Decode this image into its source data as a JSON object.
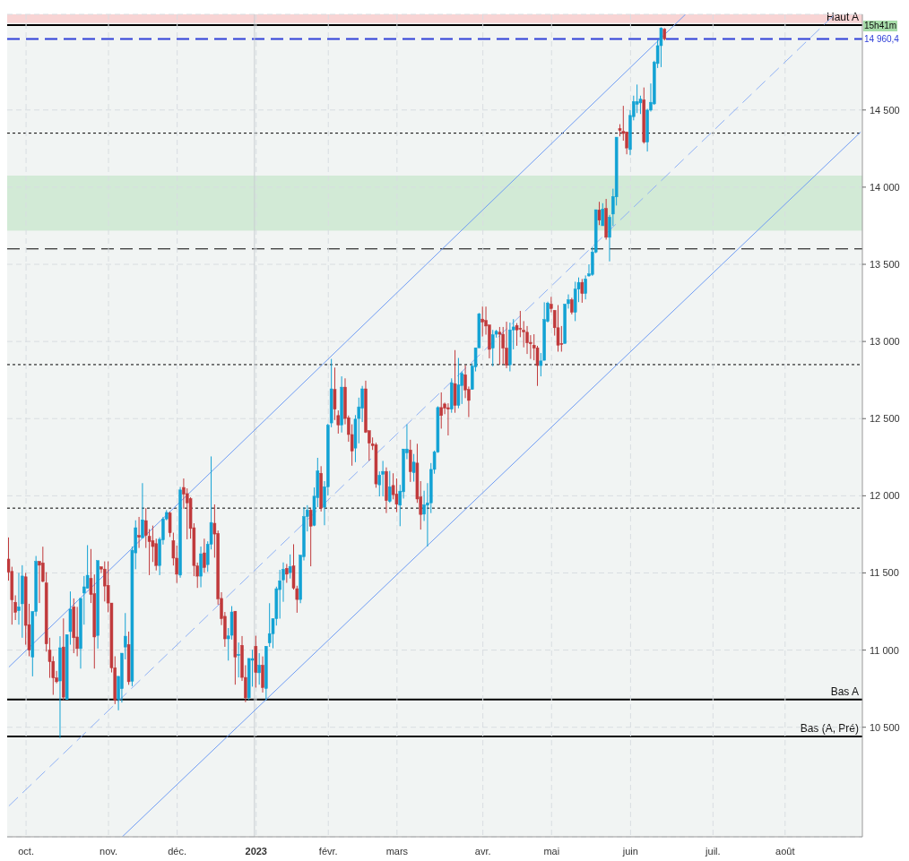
{
  "chart_data": {
    "type": "candlestick",
    "categories": [
      null,
      null,
      null,
      null,
      null,
      "oct.",
      null,
      null,
      null,
      null,
      null,
      null,
      null,
      null,
      null,
      null,
      null,
      null,
      null,
      null,
      null,
      null,
      null,
      null,
      null,
      null,
      null,
      null,
      null,
      "nov.",
      null,
      null,
      null,
      null,
      null,
      null,
      null,
      null,
      null,
      null,
      null,
      null,
      null,
      null,
      null,
      null,
      null,
      null,
      null,
      "déc.",
      null,
      null,
      null,
      null,
      null,
      null,
      null,
      null,
      null,
      null,
      null,
      null,
      null,
      null,
      null,
      null,
      null,
      null,
      null,
      null,
      null,
      null,
      "2023",
      null,
      null,
      null,
      null,
      null,
      null,
      null,
      null,
      null,
      null,
      null,
      null,
      null,
      null,
      null,
      null,
      null,
      null,
      null,
      null,
      "févr.",
      null,
      null,
      null,
      null,
      null,
      null,
      null,
      null,
      null,
      null,
      null,
      null,
      null,
      null,
      null,
      null,
      null,
      null,
      null,
      "mars",
      null,
      null,
      null,
      null,
      null,
      null,
      null,
      null,
      null,
      null,
      null,
      null,
      null,
      null,
      null,
      null,
      null,
      null,
      null,
      null,
      null,
      null,
      null,
      null,
      "avr.",
      null,
      null,
      null,
      null,
      null,
      null,
      null,
      null,
      null,
      null,
      null,
      null,
      null,
      null,
      null,
      null,
      null,
      null,
      null,
      "mai",
      null,
      null,
      null,
      null,
      null,
      null,
      null,
      null,
      null,
      null,
      null,
      null,
      null,
      null,
      null,
      null,
      null,
      null,
      null,
      null,
      null,
      null,
      "juin",
      null,
      null,
      null,
      null,
      null,
      null,
      null,
      null,
      null,
      null,
      null,
      null,
      null,
      null,
      null,
      null,
      null,
      null,
      null,
      null,
      null,
      null,
      null,
      "juil.",
      null,
      null,
      null,
      null,
      null,
      null,
      null,
      null,
      null,
      null,
      null,
      null,
      null,
      null,
      null,
      null,
      null,
      null,
      null,
      null,
      "août",
      null,
      null,
      null,
      null,
      null,
      null,
      null,
      null,
      null,
      null,
      null,
      null,
      null,
      null,
      null,
      null,
      null,
      null,
      null,
      null,
      null,
      null
    ],
    "ohlc": [
      [
        11590,
        11730,
        11450,
        11505
      ],
      [
        11510,
        11540,
        11165,
        11325
      ],
      [
        11310,
        11355,
        11195,
        11245
      ],
      [
        11255,
        11500,
        11165,
        11280
      ],
      [
        11300,
        11550,
        11080,
        11480
      ],
      [
        11475,
        11500,
        11035,
        11160
      ],
      [
        11165,
        11300,
        10960,
        11000
      ],
      [
        10955,
        11250,
        10830,
        11250
      ],
      [
        11250,
        11610,
        11220,
        11575
      ],
      [
        11575,
        11575,
        11305,
        11550
      ],
      [
        11565,
        11670,
        11440,
        11445
      ],
      [
        11435,
        11505,
        10990,
        11040
      ],
      [
        11000,
        11080,
        10820,
        10925
      ],
      [
        10927,
        10960,
        10710,
        10820
      ],
      [
        10820,
        10865,
        10785,
        10795
      ],
      [
        10800,
        11090,
        10430,
        11015
      ],
      [
        11020,
        11205,
        10675,
        10695
      ],
      [
        10680,
        11100,
        10680,
        11100
      ],
      [
        11120,
        11380,
        11035,
        11265
      ],
      [
        11280,
        11335,
        10980,
        11080
      ],
      [
        11085,
        11280,
        10960,
        11010
      ],
      [
        11010,
        11335,
        10880,
        11335
      ],
      [
        11370,
        11480,
        11165,
        11410
      ],
      [
        11400,
        11680,
        11400,
        11485
      ],
      [
        11465,
        11655,
        11305,
        11360
      ],
      [
        11365,
        11490,
        10880,
        11085
      ],
      [
        11095,
        11580,
        11010,
        11580
      ],
      [
        11540,
        11540,
        11500,
        11525
      ],
      [
        11525,
        11575,
        11315,
        11415
      ],
      [
        11420,
        11575,
        11245,
        11305
      ],
      [
        11305,
        11305,
        10855,
        10885
      ],
      [
        10885,
        10960,
        10650,
        10675
      ],
      [
        10680,
        10830,
        10610,
        10830
      ],
      [
        10750,
        10980,
        10660,
        10980
      ],
      [
        11020,
        11240,
        10940,
        11090
      ],
      [
        11036,
        11120,
        10775,
        10795
      ],
      [
        10798,
        11671,
        10766,
        11647
      ],
      [
        11630,
        11841,
        11524,
        11793
      ],
      [
        11743,
        11863,
        11662,
        11731
      ],
      [
        11728,
        12082,
        11728,
        11844
      ],
      [
        11839,
        11920,
        11662,
        11743
      ],
      [
        11737,
        11784,
        11486,
        11703
      ],
      [
        11709,
        11807,
        11571,
        11671
      ],
      [
        11690,
        11722,
        11516,
        11548
      ],
      [
        11548,
        11731,
        11486,
        11718
      ],
      [
        11714,
        11863,
        11684,
        11850
      ],
      [
        11850,
        11907,
        11841,
        11892
      ],
      [
        11888,
        11897,
        11733,
        11760
      ],
      [
        11709,
        11761,
        11548,
        11596
      ],
      [
        11596,
        11677,
        11435,
        11492
      ],
      [
        11486,
        12057,
        11469,
        12038
      ],
      [
        12054,
        12112,
        11916,
        12010
      ],
      [
        12014,
        12048,
        11718,
        11954
      ],
      [
        11982,
        11991,
        11722,
        11788
      ],
      [
        11793,
        11822,
        11479,
        11548
      ],
      [
        11545,
        11567,
        11403,
        11479
      ],
      [
        11479,
        11671,
        11407,
        11624
      ],
      [
        11630,
        11722,
        11501,
        11535
      ],
      [
        11554,
        11705,
        11507,
        11686
      ],
      [
        11686,
        12255,
        11652,
        11827
      ],
      [
        11822,
        11944,
        11599,
        11752
      ],
      [
        11756,
        11775,
        11294,
        11332
      ],
      [
        11335,
        11375,
        11162,
        11204
      ],
      [
        11219,
        11247,
        11021,
        11073
      ],
      [
        11073,
        11143,
        10932,
        11092
      ],
      [
        11096,
        11285,
        11068,
        11247
      ],
      [
        11252,
        11252,
        10776,
        10955
      ],
      [
        10965,
        11049,
        10823,
        10972
      ],
      [
        11031,
        11091,
        10800,
        10823
      ],
      [
        10823,
        10902,
        10663,
        10691
      ],
      [
        10691,
        10946,
        10676,
        10946
      ],
      [
        10934,
        11002,
        10763,
        10945
      ],
      [
        11025,
        11093,
        10757,
        10855
      ],
      [
        10853,
        10980,
        10776,
        10902
      ],
      [
        10902,
        10959,
        10725,
        10757
      ],
      [
        10751,
        11025,
        10676,
        11025
      ],
      [
        11046,
        11304,
        11021,
        11107
      ],
      [
        11106,
        11204,
        11012,
        11204
      ],
      [
        11204,
        11411,
        11159,
        11398
      ],
      [
        11392,
        11520,
        11204,
        11449
      ],
      [
        11455,
        11568,
        11313,
        11524
      ],
      [
        11530,
        11558,
        11436,
        11492
      ],
      [
        11502,
        11620,
        11464,
        11542
      ],
      [
        11545,
        11686,
        11392,
        11402
      ],
      [
        11398,
        11417,
        11242,
        11328
      ],
      [
        11328,
        11615,
        11304,
        11615
      ],
      [
        11605,
        11926,
        11581,
        11865
      ],
      [
        11865,
        11939,
        11769,
        11907
      ],
      [
        11907,
        11916,
        11543,
        11803
      ],
      [
        11809,
        12054,
        11803,
        11997
      ],
      [
        11988,
        12246,
        11926,
        12161
      ],
      [
        12146,
        12192,
        11898,
        11920
      ],
      [
        11926,
        12095,
        11809,
        12058
      ],
      [
        12058,
        12467,
        12001,
        12457
      ],
      [
        12472,
        12887,
        12444,
        12693
      ],
      [
        12689,
        12831,
        12491,
        12561
      ],
      [
        12520,
        12553,
        12403,
        12459
      ],
      [
        12459,
        12774,
        12410,
        12704
      ],
      [
        12704,
        12761,
        12463,
        12501
      ],
      [
        12506,
        12520,
        12350,
        12397
      ],
      [
        12397,
        12463,
        12195,
        12290
      ],
      [
        12309,
        12523,
        12218,
        12497
      ],
      [
        12501,
        12636,
        12340,
        12576
      ],
      [
        12567,
        12712,
        12478,
        12693
      ],
      [
        12693,
        12746,
        12407,
        12412
      ],
      [
        12422,
        12422,
        12227,
        12341
      ],
      [
        12337,
        12378,
        12297,
        12325
      ],
      [
        12331,
        12344,
        12052,
        12077
      ],
      [
        12071,
        12158,
        11996,
        12133
      ],
      [
        12139,
        12226,
        11996,
        12158
      ],
      [
        12158,
        12184,
        11888,
        11969
      ],
      [
        11963,
        12161,
        11954,
        12058
      ],
      [
        12067,
        12146,
        11977,
        12007
      ],
      [
        12011,
        12112,
        11894,
        11945
      ],
      [
        11939,
        12071,
        11803,
        12030
      ],
      [
        12026,
        12303,
        11982,
        12303
      ],
      [
        12278,
        12463,
        12237,
        12303
      ],
      [
        12297,
        12363,
        12090,
        12156
      ],
      [
        12150,
        12271,
        12092,
        12218
      ],
      [
        12212,
        12337,
        11954,
        11979
      ],
      [
        11992,
        12095,
        11781,
        11879
      ],
      [
        11881,
        12033,
        11837,
        11941
      ],
      [
        11939,
        12082,
        11671,
        11954
      ],
      [
        11954,
        12212,
        11888,
        12171
      ],
      [
        12171,
        12293,
        12143,
        12284
      ],
      [
        12284,
        12580,
        12278,
        12572
      ],
      [
        12572,
        12670,
        12435,
        12520
      ],
      [
        12595,
        12604,
        12529,
        12567
      ],
      [
        12571,
        12599,
        12391,
        12561
      ],
      [
        12561,
        12761,
        12538,
        12733
      ],
      [
        12727,
        12944,
        12538,
        12586
      ],
      [
        12586,
        12893,
        12567,
        12718
      ],
      [
        12714,
        12806,
        12595,
        12793
      ],
      [
        12784,
        12846,
        12633,
        12686
      ],
      [
        12689,
        12708,
        12510,
        12618
      ],
      [
        12689,
        12859,
        12689,
        12840
      ],
      [
        12836,
        12959,
        12806,
        12959
      ],
      [
        12959,
        13185,
        12959,
        13179
      ],
      [
        13145,
        13226,
        13032,
        13126
      ],
      [
        13136,
        13226,
        13044,
        13100
      ],
      [
        13107,
        13107,
        12891,
        12949
      ],
      [
        12957,
        13075,
        12840,
        13043
      ],
      [
        13047,
        13075,
        13025,
        13066
      ],
      [
        13060,
        13094,
        12849,
        13047
      ],
      [
        13047,
        13094,
        12855,
        12957
      ],
      [
        12957,
        13128,
        12827,
        12846
      ],
      [
        12849,
        13122,
        12806,
        13075
      ],
      [
        13075,
        13145,
        12949,
        13094
      ],
      [
        13104,
        13119,
        12972,
        13075
      ],
      [
        13085,
        13198,
        13028,
        13081
      ],
      [
        13072,
        13132,
        12962,
        13062
      ],
      [
        13060,
        13100,
        12919,
        12991
      ],
      [
        12994,
        13041,
        12887,
        12985
      ],
      [
        12976,
        13047,
        12878,
        12957
      ],
      [
        12959,
        12972,
        12712,
        12844
      ],
      [
        12844,
        12925,
        12774,
        12874
      ],
      [
        12878,
        13254,
        12878,
        13142
      ],
      [
        13130,
        13258,
        13123,
        13249
      ],
      [
        13241,
        13289,
        13189,
        13213
      ],
      [
        13202,
        13202,
        13038,
        13089
      ],
      [
        13089,
        13236,
        12934,
        12976
      ],
      [
        12987,
        13100,
        12934,
        12981
      ],
      [
        12987,
        13245,
        12987,
        13241
      ],
      [
        13245,
        13305,
        13213,
        13270
      ],
      [
        13270,
        13283,
        13175,
        13189
      ],
      [
        13189,
        13387,
        13132,
        13339
      ],
      [
        13339,
        13415,
        13255,
        13383
      ],
      [
        13383,
        13405,
        13251,
        13311
      ],
      [
        13311,
        13428,
        13273,
        13405
      ],
      [
        13425,
        13500,
        13420,
        13438
      ],
      [
        13434,
        13613,
        13425,
        13579
      ],
      [
        13579,
        13854,
        13572,
        13854
      ],
      [
        13852,
        13905,
        13754,
        13786
      ],
      [
        13750,
        13896,
        13750,
        13858
      ],
      [
        13862,
        13924,
        13660,
        13675
      ],
      [
        13675,
        13820,
        13519,
        13805
      ],
      [
        13826,
        13990,
        13749,
        13939
      ],
      [
        13937,
        14324,
        13881,
        14324
      ],
      [
        14380,
        14408,
        14329,
        14367
      ],
      [
        14361,
        14527,
        14301,
        14348
      ],
      [
        14358,
        14358,
        14213,
        14254
      ],
      [
        14244,
        14499,
        14207,
        14465
      ],
      [
        14457,
        14593,
        14433,
        14555
      ],
      [
        14537,
        14665,
        14480,
        14555
      ],
      [
        14546,
        14593,
        14474,
        14570
      ],
      [
        14565,
        14646,
        14282,
        14292
      ],
      [
        14292,
        14508,
        14231,
        14499
      ],
      [
        14499,
        14672,
        14490,
        14550
      ],
      [
        14540,
        14819,
        14533,
        14810
      ],
      [
        14801,
        14955,
        14772,
        14917
      ],
      [
        14917,
        15036,
        14778,
        15031
      ],
      [
        15023,
        15031,
        14951,
        14961
      ],
      null,
      null,
      null,
      null,
      null,
      null,
      null,
      null,
      null,
      null,
      null,
      null,
      null,
      null,
      null,
      null,
      null,
      null,
      null,
      null,
      null,
      null,
      null,
      null,
      null,
      null,
      null,
      null,
      null,
      null,
      null,
      null,
      null,
      null,
      null,
      null,
      null,
      null,
      null,
      null,
      null,
      null,
      null,
      null,
      null,
      null,
      null,
      null,
      null,
      null,
      null,
      null,
      null,
      null,
      null,
      null,
      null
    ],
    "colors": [
      "#c0393b",
      "#c0393b",
      "#c0393b",
      "#12a2d4",
      "#12a2d4",
      "#c0393b",
      "#c0393b",
      "#12a2d4",
      "#12a2d4",
      "#c0393b",
      "#c0393b",
      "#c0393b",
      "#c0393b",
      "#c0393b",
      "#c0393b",
      "#12a2d4",
      "#c0393b",
      "#12a2d4",
      "#12a2d4",
      "#c0393b",
      "#c0393b",
      "#12a2d4",
      "#12a2d4",
      "#12a2d4",
      "#c0393b",
      "#c0393b",
      "#12a2d4",
      "#c0393b",
      "#c0393b",
      "#c0393b",
      "#c0393b",
      "#c0393b",
      "#12a2d4",
      "#12a2d4",
      "#12a2d4",
      "#c0393b",
      "#12a2d4",
      "#12a2d4",
      "#c0393b",
      "#12a2d4",
      "#c0393b",
      "#c0393b",
      "#c0393b",
      "#c0393b",
      "#12a2d4",
      "#12a2d4",
      "#12a2d4",
      "#c0393b",
      "#c0393b",
      "#c0393b",
      "#12a2d4",
      "#c0393b",
      "#c0393b",
      "#c0393b",
      "#c0393b",
      "#c0393b",
      "#12a2d4",
      "#c0393b",
      "#12a2d4",
      "#12a2d4",
      "#c0393b",
      "#c0393b",
      "#c0393b",
      "#c0393b",
      "#12a2d4",
      "#12a2d4",
      "#c0393b",
      "#12a2d4",
      "#c0393b",
      "#c0393b",
      "#12a2d4",
      "#12a2d4",
      "#c0393b",
      "#12a2d4",
      "#c0393b",
      "#12a2d4",
      "#12a2d4",
      "#12a2d4",
      "#12a2d4",
      "#12a2d4",
      "#12a2d4",
      "#c0393b",
      "#12a2d4",
      "#c0393b",
      "#c0393b",
      "#12a2d4",
      "#12a2d4",
      "#12a2d4",
      "#c0393b",
      "#12a2d4",
      "#12a2d4",
      "#c0393b",
      "#12a2d4",
      "#12a2d4",
      "#12a2d4",
      "#c0393b",
      "#c0393b",
      "#12a2d4",
      "#c0393b",
      "#c0393b",
      "#c0393b",
      "#12a2d4",
      "#12a2d4",
      "#12a2d4",
      "#c0393b",
      "#c0393b",
      "#c0393b",
      "#c0393b",
      "#12a2d4",
      "#12a2d4",
      "#c0393b",
      "#12a2d4",
      "#c0393b",
      "#c0393b",
      "#12a2d4",
      "#12a2d4",
      "#12a2d4",
      "#c0393b",
      "#12a2d4",
      "#c0393b",
      "#c0393b",
      "#12a2d4",
      "#12a2d4",
      "#12a2d4",
      "#12a2d4",
      "#12a2d4",
      "#c0393b",
      "#c0393b",
      "#c0393b",
      "#12a2d4",
      "#c0393b",
      "#12a2d4",
      "#12a2d4",
      "#c0393b",
      "#c0393b",
      "#12a2d4",
      "#12a2d4",
      "#12a2d4",
      "#c0393b",
      "#c0393b",
      "#c0393b",
      "#12a2d4",
      "#12a2d4",
      "#c0393b",
      "#c0393b",
      "#c0393b",
      "#12a2d4",
      "#12a2d4",
      "#c0393b",
      "#c0393b",
      "#c0393b",
      "#c0393b",
      "#c0393b",
      "#c0393b",
      "#c0393b",
      "#12a2d4",
      "#12a2d4",
      "#12a2d4",
      "#c0393b",
      "#c0393b",
      "#c0393b",
      "#c0393b",
      "#12a2d4",
      "#12a2d4",
      "#c0393b",
      "#12a2d4",
      "#12a2d4",
      "#c0393b",
      "#12a2d4",
      "#12a2d4",
      "#12a2d4",
      "#12a2d4",
      "#c0393b",
      "#12a2d4",
      "#c0393b",
      "#12a2d4",
      "#12a2d4",
      "#12a2d4",
      "#c0393b",
      "#c0393b",
      "#c0393b",
      "#12a2d4",
      "#12a2d4",
      "#12a2d4",
      "#12a2d4",
      "#c0393b",
      "#12a2d4",
      "#12a2d4",
      "#12a2d4",
      "#12a2d4",
      "#12a2d4",
      "#c0393b",
      null,
      null,
      null,
      null,
      null,
      null,
      null,
      null,
      null,
      null,
      null,
      null,
      null,
      null,
      null,
      null,
      null,
      null,
      null,
      null,
      null,
      null,
      null,
      null,
      null,
      null,
      null,
      null,
      null,
      null,
      null,
      null,
      null,
      null,
      null,
      null,
      null,
      null,
      null,
      null,
      null,
      null,
      null,
      null,
      null,
      null,
      null,
      null,
      null,
      null,
      null,
      null,
      null,
      null,
      null,
      null,
      null
    ],
    "series": [
      {
        "type": "line",
        "color": "#6f9cf3",
        "line_style": "solid",
        "values": [
          10890,
          null,
          null,
          null,
          null,
          null,
          null,
          null,
          null,
          null,
          null,
          null,
          null,
          null,
          null,
          null,
          null,
          null,
          null,
          null,
          null,
          null,
          null,
          null,
          null,
          null,
          null,
          null,
          null,
          null,
          null,
          null,
          null,
          null,
          null,
          null,
          null,
          null,
          null,
          null,
          null,
          null,
          null,
          null,
          null,
          null,
          null,
          null,
          null,
          null,
          null,
          null,
          null,
          null,
          null,
          null,
          null,
          null,
          null,
          null,
          null,
          null,
          null,
          null,
          null,
          null,
          null,
          null,
          null,
          null,
          null,
          null,
          null,
          null,
          null,
          null,
          null,
          null,
          null,
          null,
          null,
          null,
          null,
          null,
          null,
          null,
          null,
          null,
          null,
          null,
          null,
          null,
          null,
          null,
          null,
          null,
          null,
          null,
          null,
          null,
          null,
          null,
          null,
          null,
          null,
          null,
          null,
          null,
          null,
          null,
          null,
          null,
          null,
          null,
          null,
          null,
          null,
          null,
          null,
          null,
          null,
          null,
          null,
          null,
          null,
          null,
          null,
          null,
          null,
          null,
          null,
          null,
          null,
          null,
          null,
          null,
          null,
          null,
          null,
          null,
          null,
          null,
          null,
          null,
          null,
          null,
          null,
          null,
          null,
          null,
          null,
          null,
          null,
          null,
          null,
          null,
          null,
          null,
          null,
          null,
          null,
          null,
          null,
          null,
          null,
          null,
          null,
          null,
          null,
          null,
          null,
          null,
          null,
          null,
          null,
          null,
          null,
          null,
          null,
          null,
          null,
          null,
          null,
          null,
          null,
          null,
          null,
          null,
          null,
          null,
          null,
          null,
          null,
          null,
          null,
          null,
          null,
          15120,
          null,
          null,
          null,
          null,
          null,
          null,
          null,
          null,
          null,
          null,
          null,
          null,
          null,
          null,
          null,
          null,
          null,
          null,
          null,
          null,
          null,
          null,
          null,
          null,
          null,
          null,
          null,
          null,
          null,
          null,
          null,
          null,
          null,
          null,
          null,
          null,
          null,
          null,
          null,
          null,
          null,
          null,
          null,
          null,
          null,
          null,
          null,
          null,
          null,
          null,
          null
        ]
      },
      {
        "type": "line",
        "color": "#8fb1f5",
        "line_style": "dashed",
        "values": [
          9990,
          null,
          null,
          null,
          null,
          null,
          null,
          null,
          null,
          null,
          null,
          null,
          null,
          null,
          null,
          null,
          null,
          null,
          null,
          null,
          null,
          null,
          null,
          null,
          null,
          null,
          null,
          null,
          null,
          null,
          null,
          null,
          null,
          null,
          null,
          null,
          null,
          null,
          null,
          null,
          null,
          null,
          null,
          null,
          null,
          null,
          null,
          null,
          null,
          null,
          null,
          null,
          null,
          null,
          null,
          null,
          null,
          null,
          null,
          null,
          null,
          null,
          null,
          null,
          null,
          null,
          null,
          null,
          null,
          null,
          null,
          null,
          null,
          null,
          null,
          null,
          null,
          null,
          null,
          null,
          null,
          null,
          null,
          null,
          null,
          null,
          null,
          null,
          null,
          null,
          null,
          null,
          null,
          null,
          null,
          null,
          null,
          null,
          null,
          null,
          null,
          null,
          null,
          null,
          null,
          null,
          null,
          null,
          null,
          null,
          null,
          null,
          null,
          null,
          null,
          null,
          null,
          null,
          null,
          null,
          null,
          null,
          null,
          null,
          null,
          null,
          null,
          null,
          null,
          null,
          null,
          null,
          null,
          null,
          null,
          null,
          null,
          null,
          null,
          null,
          null,
          null,
          null,
          null,
          null,
          null,
          null,
          null,
          null,
          null,
          null,
          null,
          null,
          null,
          null,
          null,
          null,
          null,
          null,
          null,
          null,
          null,
          null,
          null,
          null,
          null,
          null,
          null,
          null,
          null,
          null,
          null,
          null,
          null,
          null,
          null,
          null,
          null,
          null,
          null,
          null,
          null,
          null,
          null,
          null,
          null,
          null,
          null,
          null,
          null,
          null,
          null,
          null,
          null,
          null,
          null,
          null,
          null,
          null,
          null,
          null,
          null,
          null,
          null,
          null,
          null,
          null,
          null,
          null,
          null,
          null,
          null,
          null,
          null,
          null,
          null,
          null,
          null,
          null,
          null,
          null,
          null,
          null,
          null,
          null,
          null,
          null,
          null,
          null,
          null,
          null,
          null,
          null,
          null,
          null,
          null,
          null,
          null,
          null,
          null,
          15110,
          null,
          null,
          null,
          null,
          null,
          null,
          null,
          null
        ]
      },
      {
        "type": "line",
        "color": "#6f9cf3",
        "line_style": "solid",
        "values": [
          null,
          null,
          null,
          null,
          null,
          null,
          null,
          null,
          null,
          null,
          null,
          null,
          null,
          null,
          null,
          null,
          null,
          null,
          null,
          null,
          null,
          null,
          null,
          null,
          null,
          null,
          null,
          null,
          null,
          null,
          null,
          null,
          null,
          9790,
          null,
          null,
          null,
          null,
          null,
          null,
          null,
          null,
          null,
          null,
          null,
          null,
          null,
          null,
          null,
          null,
          null,
          null,
          null,
          null,
          null,
          null,
          null,
          null,
          null,
          null,
          null,
          null,
          null,
          null,
          null,
          null,
          null,
          null,
          null,
          null,
          null,
          null,
          null,
          null,
          null,
          null,
          null,
          null,
          null,
          null,
          null,
          null,
          null,
          null,
          null,
          null,
          null,
          null,
          null,
          null,
          null,
          null,
          null,
          null,
          null,
          null,
          null,
          null,
          null,
          null,
          null,
          null,
          null,
          null,
          null,
          null,
          null,
          null,
          null,
          null,
          null,
          null,
          null,
          null,
          null,
          null,
          null,
          null,
          null,
          null,
          null,
          null,
          null,
          null,
          null,
          null,
          null,
          null,
          null,
          null,
          null,
          null,
          null,
          null,
          null,
          null,
          null,
          null,
          null,
          null,
          null,
          null,
          null,
          null,
          null,
          null,
          null,
          null,
          null,
          null,
          null,
          null,
          null,
          null,
          null,
          null,
          null,
          null,
          null,
          null,
          null,
          null,
          null,
          null,
          null,
          null,
          null,
          null,
          null,
          null,
          null,
          null,
          null,
          null,
          null,
          null,
          null,
          null,
          null,
          null,
          null,
          null,
          null,
          null,
          null,
          null,
          null,
          null,
          null,
          null,
          null,
          null,
          null,
          null,
          null,
          null,
          null,
          null,
          null,
          null,
          null,
          null,
          null,
          null,
          null,
          null,
          null,
          null,
          null,
          null,
          null,
          null,
          null,
          null,
          null,
          null,
          null,
          null,
          null,
          null,
          null,
          null,
          null,
          null,
          null,
          null,
          null,
          null,
          null,
          null,
          null,
          null,
          null,
          null,
          null,
          null,
          null,
          null,
          null,
          null,
          null,
          null,
          null,
          null,
          null,
          null,
          null,
          null,
          14357
        ]
      }
    ],
    "ylim": [
      9790,
      15120
    ],
    "yticks": [
      {
        "value": 10500,
        "label": "10 500"
      },
      {
        "value": 11000,
        "label": "11 000"
      },
      {
        "value": 11500,
        "label": "11 500"
      },
      {
        "value": 12000,
        "label": "12 000"
      },
      {
        "value": 12500,
        "label": "12 500"
      },
      {
        "value": 13000,
        "label": "13 000"
      },
      {
        "value": 13500,
        "label": "13 500"
      },
      {
        "value": 14000,
        "label": "14 000"
      },
      {
        "value": 14500,
        "label": "14 500"
      }
    ],
    "grid": true,
    "ref_lines": [
      {
        "axis": "y",
        "value": 15050,
        "label": "Haut A",
        "color": "#000000",
        "line_style": "solid"
      },
      {
        "axis": "y",
        "value": 14960.4,
        "label": "14 960,4",
        "color": "#2f3fd8",
        "line_style": "dashed"
      },
      {
        "axis": "y",
        "value": 14350,
        "color": "#000000",
        "line_style": "dotted"
      },
      {
        "axis": "y",
        "value": 13600,
        "color": "#000000",
        "line_style": "dashed"
      },
      {
        "axis": "y",
        "value": 12850,
        "color": "#000000",
        "line_style": "dotted"
      },
      {
        "axis": "y",
        "value": 11920,
        "color": "#000000",
        "line_style": "dotted"
      },
      {
        "axis": "y",
        "value": 10680,
        "label": "Bas A",
        "color": "#000000",
        "line_style": "solid"
      },
      {
        "axis": "y",
        "value": 10440,
        "label": "Bas (A, Pré)",
        "color": "#000000",
        "line_style": "solid"
      },
      {
        "axis": "x",
        "value": "2023",
        "color": "#c9cdd1",
        "line_style": "solid"
      }
    ],
    "bands": [
      {
        "axis": "y",
        "from": 13718,
        "to": 14075,
        "color": "#d2ead6"
      },
      {
        "axis": "y",
        "from": 15064,
        "to": 15120,
        "color": "#f8d4d4"
      }
    ],
    "annotations": [
      "15h41m"
    ]
  }
}
